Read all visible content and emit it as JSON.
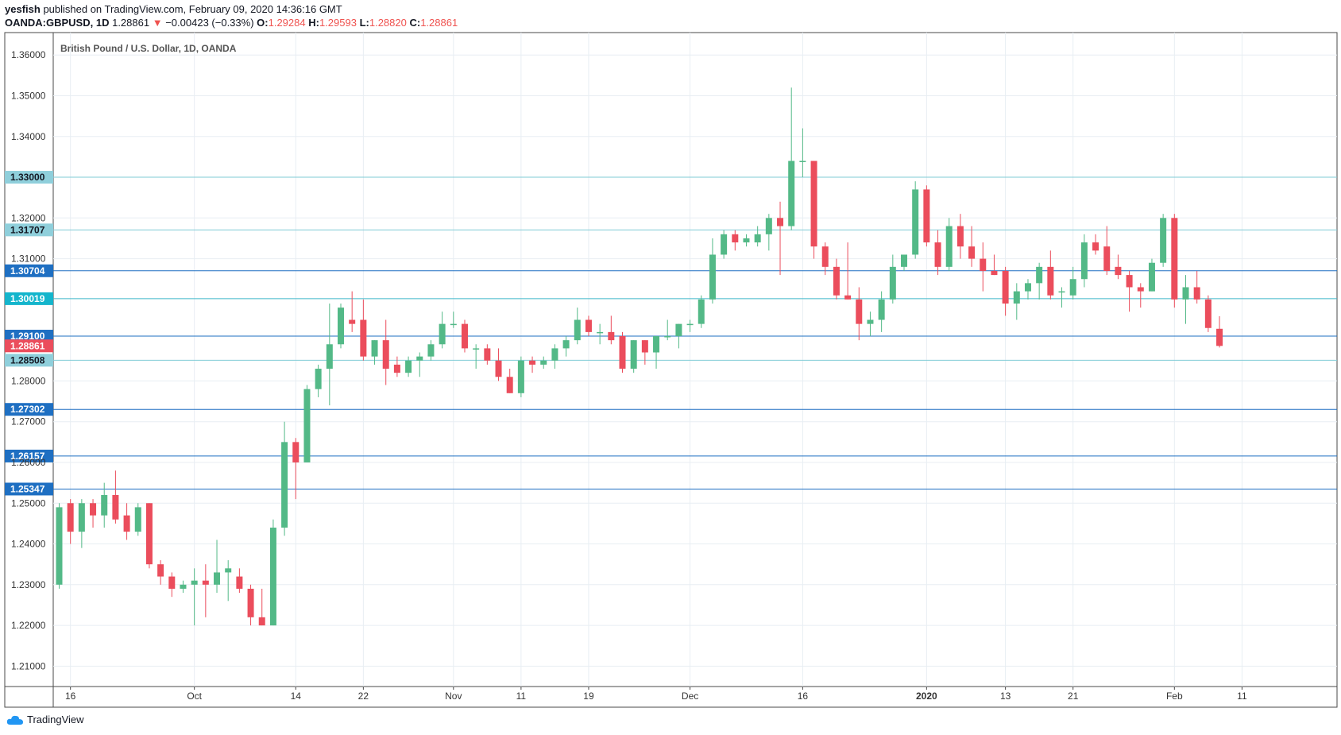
{
  "header": {
    "author": "yesfish",
    "published": "published on TradingView.com, February 09, 2020 14:36:16 GMT",
    "symbol": "OANDA:GBPUSD, 1D",
    "last": "1.28861",
    "change": "−0.00423 (−0.33%)",
    "o_label": "O:",
    "o_value": "1.29284",
    "h_label": "H:",
    "h_value": "1.29593",
    "l_label": "L:",
    "l_value": "1.28820",
    "c_label": "C:",
    "c_value": "1.28861"
  },
  "footer": {
    "brand": "TradingView"
  },
  "colors": {
    "up": "#53b987",
    "down": "#eb4d5c",
    "grid": "#e8eef3",
    "hline_light": "#7fcbd6",
    "hline_dark": "#1e6fc2"
  },
  "chart_data": {
    "type": "candlestick",
    "title": "British Pound / U.S. Dollar, 1D, OANDA",
    "ylim": [
      1.205,
      1.3655
    ],
    "x_ticks": [
      {
        "label": "16",
        "i": 1
      },
      {
        "label": "Oct",
        "i": 12
      },
      {
        "label": "14",
        "i": 21
      },
      {
        "label": "22",
        "i": 27
      },
      {
        "label": "Nov",
        "i": 35
      },
      {
        "label": "11",
        "i": 41
      },
      {
        "label": "19",
        "i": 47
      },
      {
        "label": "Dec",
        "i": 56
      },
      {
        "label": "16",
        "i": 66
      },
      {
        "label": "2020",
        "i": 77
      },
      {
        "label": "13",
        "i": 84
      },
      {
        "label": "21",
        "i": 90
      },
      {
        "label": "Feb",
        "i": 99
      },
      {
        "label": "11",
        "i": 105
      }
    ],
    "y_ticks": [
      "1.36000",
      "1.35000",
      "1.34000",
      "1.32000",
      "1.31000",
      "1.28000",
      "1.27000",
      "1.26000",
      "1.25000",
      "1.24000",
      "1.23000",
      "1.22000",
      "1.21000"
    ],
    "levels": [
      {
        "value": 1.33,
        "label": "1.33000",
        "style": "light"
      },
      {
        "value": 1.31707,
        "label": "1.31707",
        "style": "light"
      },
      {
        "value": 1.30704,
        "label": "1.30704",
        "style": "dark"
      },
      {
        "value": 1.30019,
        "label": "1.30019",
        "style": "cyan"
      },
      {
        "value": 1.291,
        "label": "1.29100",
        "style": "dark"
      },
      {
        "value": 1.28861,
        "label": "1.28861",
        "style": "current"
      },
      {
        "value": 1.28508,
        "label": "1.28508",
        "style": "light"
      },
      {
        "value": 1.27302,
        "label": "1.27302",
        "style": "dark"
      },
      {
        "value": 1.26157,
        "label": "1.26157",
        "style": "dark"
      },
      {
        "value": 1.25347,
        "label": "1.25347",
        "style": "dark"
      }
    ],
    "candles": [
      [
        1.23,
        1.25,
        1.229,
        1.249
      ],
      [
        1.25,
        1.251,
        1.24,
        1.243
      ],
      [
        1.243,
        1.251,
        1.239,
        1.25
      ],
      [
        1.25,
        1.251,
        1.244,
        1.247
      ],
      [
        1.247,
        1.255,
        1.244,
        1.252
      ],
      [
        1.252,
        1.258,
        1.245,
        1.246
      ],
      [
        1.247,
        1.25,
        1.241,
        1.243
      ],
      [
        1.243,
        1.25,
        1.242,
        1.249
      ],
      [
        1.25,
        1.25,
        1.234,
        1.235
      ],
      [
        1.235,
        1.236,
        1.23,
        1.232
      ],
      [
        1.232,
        1.233,
        1.227,
        1.229
      ],
      [
        1.229,
        1.231,
        1.228,
        1.23
      ],
      [
        1.23,
        1.234,
        1.22,
        1.231
      ],
      [
        1.231,
        1.235,
        1.222,
        1.23
      ],
      [
        1.23,
        1.241,
        1.228,
        1.233
      ],
      [
        1.233,
        1.236,
        1.226,
        1.234
      ],
      [
        1.232,
        1.234,
        1.228,
        1.229
      ],
      [
        1.229,
        1.23,
        1.22,
        1.222
      ],
      [
        1.222,
        1.229,
        1.22,
        1.22
      ],
      [
        1.22,
        1.246,
        1.22,
        1.244
      ],
      [
        1.244,
        1.27,
        1.242,
        1.265
      ],
      [
        1.265,
        1.266,
        1.251,
        1.26
      ],
      [
        1.26,
        1.279,
        1.26,
        1.278
      ],
      [
        1.278,
        1.284,
        1.276,
        1.283
      ],
      [
        1.283,
        1.299,
        1.274,
        1.289
      ],
      [
        1.289,
        1.299,
        1.288,
        1.298
      ],
      [
        1.295,
        1.302,
        1.292,
        1.294
      ],
      [
        1.295,
        1.3,
        1.285,
        1.286
      ],
      [
        1.286,
        1.29,
        1.284,
        1.29
      ],
      [
        1.29,
        1.295,
        1.279,
        1.283
      ],
      [
        1.284,
        1.286,
        1.281,
        1.282
      ],
      [
        1.282,
        1.286,
        1.281,
        1.285
      ],
      [
        1.285,
        1.287,
        1.281,
        1.286
      ],
      [
        1.286,
        1.29,
        1.285,
        1.289
      ],
      [
        1.289,
        1.297,
        1.288,
        1.294
      ],
      [
        1.294,
        1.297,
        1.293,
        1.294
      ],
      [
        1.294,
        1.295,
        1.287,
        1.288
      ],
      [
        1.288,
        1.289,
        1.283,
        1.288
      ],
      [
        1.288,
        1.289,
        1.284,
        1.285
      ],
      [
        1.285,
        1.288,
        1.28,
        1.281
      ],
      [
        1.281,
        1.283,
        1.277,
        1.277
      ],
      [
        1.277,
        1.286,
        1.276,
        1.285
      ],
      [
        1.285,
        1.286,
        1.282,
        1.284
      ],
      [
        1.284,
        1.286,
        1.283,
        1.285
      ],
      [
        1.285,
        1.289,
        1.283,
        1.288
      ],
      [
        1.288,
        1.291,
        1.286,
        1.29
      ],
      [
        1.29,
        1.298,
        1.289,
        1.295
      ],
      [
        1.295,
        1.296,
        1.291,
        1.292
      ],
      [
        1.292,
        1.294,
        1.289,
        1.292
      ],
      [
        1.292,
        1.296,
        1.289,
        1.29
      ],
      [
        1.291,
        1.292,
        1.282,
        1.283
      ],
      [
        1.283,
        1.29,
        1.282,
        1.29
      ],
      [
        1.29,
        1.29,
        1.284,
        1.287
      ],
      [
        1.287,
        1.291,
        1.283,
        1.291
      ],
      [
        1.291,
        1.295,
        1.29,
        1.291
      ],
      [
        1.291,
        1.294,
        1.288,
        1.294
      ],
      [
        1.294,
        1.295,
        1.292,
        1.294
      ],
      [
        1.294,
        1.301,
        1.293,
        1.3
      ],
      [
        1.3,
        1.315,
        1.299,
        1.311
      ],
      [
        1.311,
        1.317,
        1.31,
        1.316
      ],
      [
        1.316,
        1.317,
        1.312,
        1.314
      ],
      [
        1.314,
        1.316,
        1.313,
        1.315
      ],
      [
        1.314,
        1.318,
        1.313,
        1.316
      ],
      [
        1.316,
        1.321,
        1.312,
        1.32
      ],
      [
        1.32,
        1.324,
        1.306,
        1.318
      ],
      [
        1.318,
        1.352,
        1.317,
        1.334
      ],
      [
        1.334,
        1.342,
        1.33,
        1.334
      ],
      [
        1.334,
        1.334,
        1.31,
        1.313
      ],
      [
        1.313,
        1.314,
        1.306,
        1.308
      ],
      [
        1.308,
        1.31,
        1.3,
        1.301
      ],
      [
        1.301,
        1.314,
        1.3,
        1.3
      ],
      [
        1.3,
        1.303,
        1.29,
        1.294
      ],
      [
        1.294,
        1.297,
        1.291,
        1.295
      ],
      [
        1.295,
        1.302,
        1.292,
        1.3
      ],
      [
        1.3,
        1.311,
        1.299,
        1.308
      ],
      [
        1.308,
        1.311,
        1.307,
        1.311
      ],
      [
        1.311,
        1.329,
        1.31,
        1.327
      ],
      [
        1.327,
        1.328,
        1.313,
        1.314
      ],
      [
        1.314,
        1.317,
        1.306,
        1.308
      ],
      [
        1.308,
        1.32,
        1.307,
        1.318
      ],
      [
        1.318,
        1.321,
        1.31,
        1.313
      ],
      [
        1.313,
        1.318,
        1.308,
        1.31
      ],
      [
        1.31,
        1.314,
        1.302,
        1.307
      ],
      [
        1.307,
        1.311,
        1.306,
        1.306
      ],
      [
        1.307,
        1.308,
        1.296,
        1.299
      ],
      [
        1.299,
        1.304,
        1.295,
        1.302
      ],
      [
        1.302,
        1.305,
        1.3,
        1.304
      ],
      [
        1.304,
        1.309,
        1.3,
        1.308
      ],
      [
        1.308,
        1.312,
        1.3,
        1.301
      ],
      [
        1.302,
        1.303,
        1.298,
        1.302
      ],
      [
        1.301,
        1.308,
        1.3,
        1.305
      ],
      [
        1.305,
        1.316,
        1.303,
        1.314
      ],
      [
        1.314,
        1.316,
        1.311,
        1.312
      ],
      [
        1.313,
        1.318,
        1.306,
        1.307
      ],
      [
        1.308,
        1.311,
        1.305,
        1.306
      ],
      [
        1.306,
        1.307,
        1.297,
        1.303
      ],
      [
        1.303,
        1.304,
        1.298,
        1.302
      ],
      [
        1.302,
        1.31,
        1.302,
        1.309
      ],
      [
        1.309,
        1.321,
        1.308,
        1.32
      ],
      [
        1.32,
        1.321,
        1.298,
        1.3
      ],
      [
        1.3,
        1.306,
        1.294,
        1.303
      ],
      [
        1.303,
        1.307,
        1.299,
        1.3
      ],
      [
        1.3,
        1.301,
        1.292,
        1.293
      ],
      [
        1.2928,
        1.2959,
        1.2882,
        1.2886
      ]
    ]
  }
}
